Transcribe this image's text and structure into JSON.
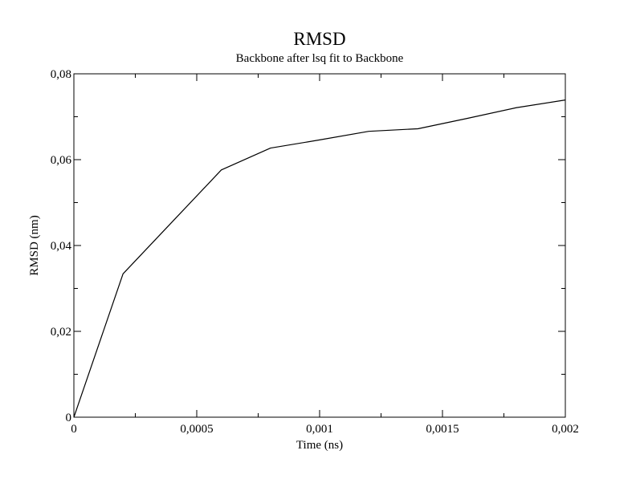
{
  "chart_data": {
    "type": "line",
    "title": "RMSD",
    "subtitle": "Backbone after lsq fit to Backbone",
    "xlabel": "Time (ns)",
    "ylabel": "RMSD (nm)",
    "xlim": [
      0,
      0.002
    ],
    "ylim": [
      0,
      0.08
    ],
    "x_ticks": [
      "0",
      "0,0005",
      "0,001",
      "0,0015",
      "0,002"
    ],
    "x_tick_values": [
      0,
      0.0005,
      0.001,
      0.0015,
      0.002
    ],
    "y_ticks": [
      "0",
      "0,02",
      "0,04",
      "0,06",
      "0,08"
    ],
    "y_tick_values": [
      0,
      0.02,
      0.04,
      0.06,
      0.08
    ],
    "x_minor_ticks": [
      0.00025,
      0.00075,
      0.00125,
      0.00175
    ],
    "y_minor_ticks": [
      0.01,
      0.03,
      0.05,
      0.07
    ],
    "grid": false,
    "series": [
      {
        "color": "#000000",
        "x": [
          0,
          0.0002,
          0.0004,
          0.0006,
          0.0008,
          0.001,
          0.0012,
          0.0014,
          0.0016,
          0.0018,
          0.002
        ],
        "y": [
          0.0,
          0.0334,
          0.0455,
          0.0576,
          0.0627,
          0.0646,
          0.0666,
          0.0672,
          0.0696,
          0.0721,
          0.0739
        ]
      }
    ]
  }
}
